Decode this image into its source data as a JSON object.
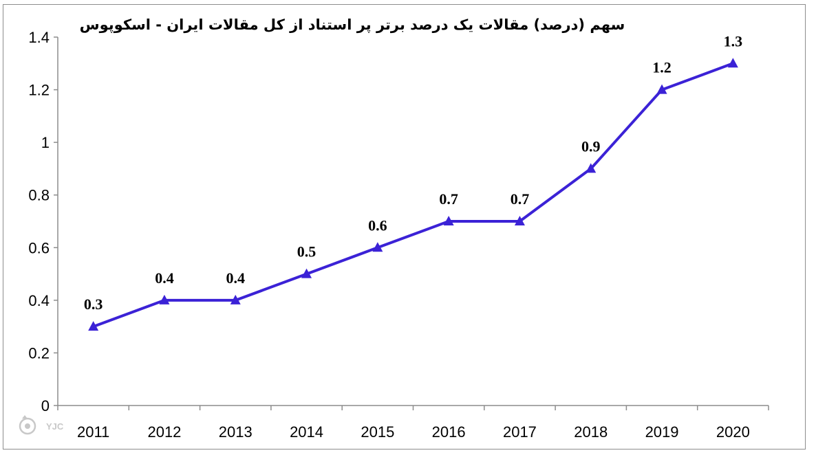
{
  "chart_data": {
    "type": "line",
    "title": "سهم (درصد) مقالات یک درصد برتر پر استناد از کل مقالات ایران - اسکوپوس",
    "xlabel": "",
    "ylabel": "",
    "categories": [
      "2011",
      "2012",
      "2013",
      "2014",
      "2015",
      "2016",
      "2017",
      "2018",
      "2019",
      "2020"
    ],
    "series": [
      {
        "values": [
          0.3,
          0.4,
          0.4,
          0.5,
          0.6,
          0.7,
          0.7,
          0.9,
          1.2,
          1.3
        ],
        "data_labels": [
          "0.3",
          "0.4",
          "0.4",
          "0.5",
          "0.6",
          "0.7",
          "0.7",
          "0.9",
          "1.2",
          "1.3"
        ],
        "color": "#3b22d6",
        "marker": "triangle"
      }
    ],
    "ylim": [
      0,
      1.4
    ],
    "yticks": [
      0,
      0.2,
      0.4,
      0.6,
      0.8,
      1,
      1.2,
      1.4
    ],
    "ytick_labels": [
      "0",
      "0.2",
      "0.4",
      "0.6",
      "0.8",
      "1",
      "1.2",
      "1.4"
    ],
    "grid": false,
    "legend": "none"
  },
  "watermark": {
    "text": "YJC",
    "icon": "yjc-logo-icon"
  },
  "colors": {
    "line": "#3b22d6",
    "axis": "#8c8c8c",
    "border": "#8c8c8c"
  }
}
